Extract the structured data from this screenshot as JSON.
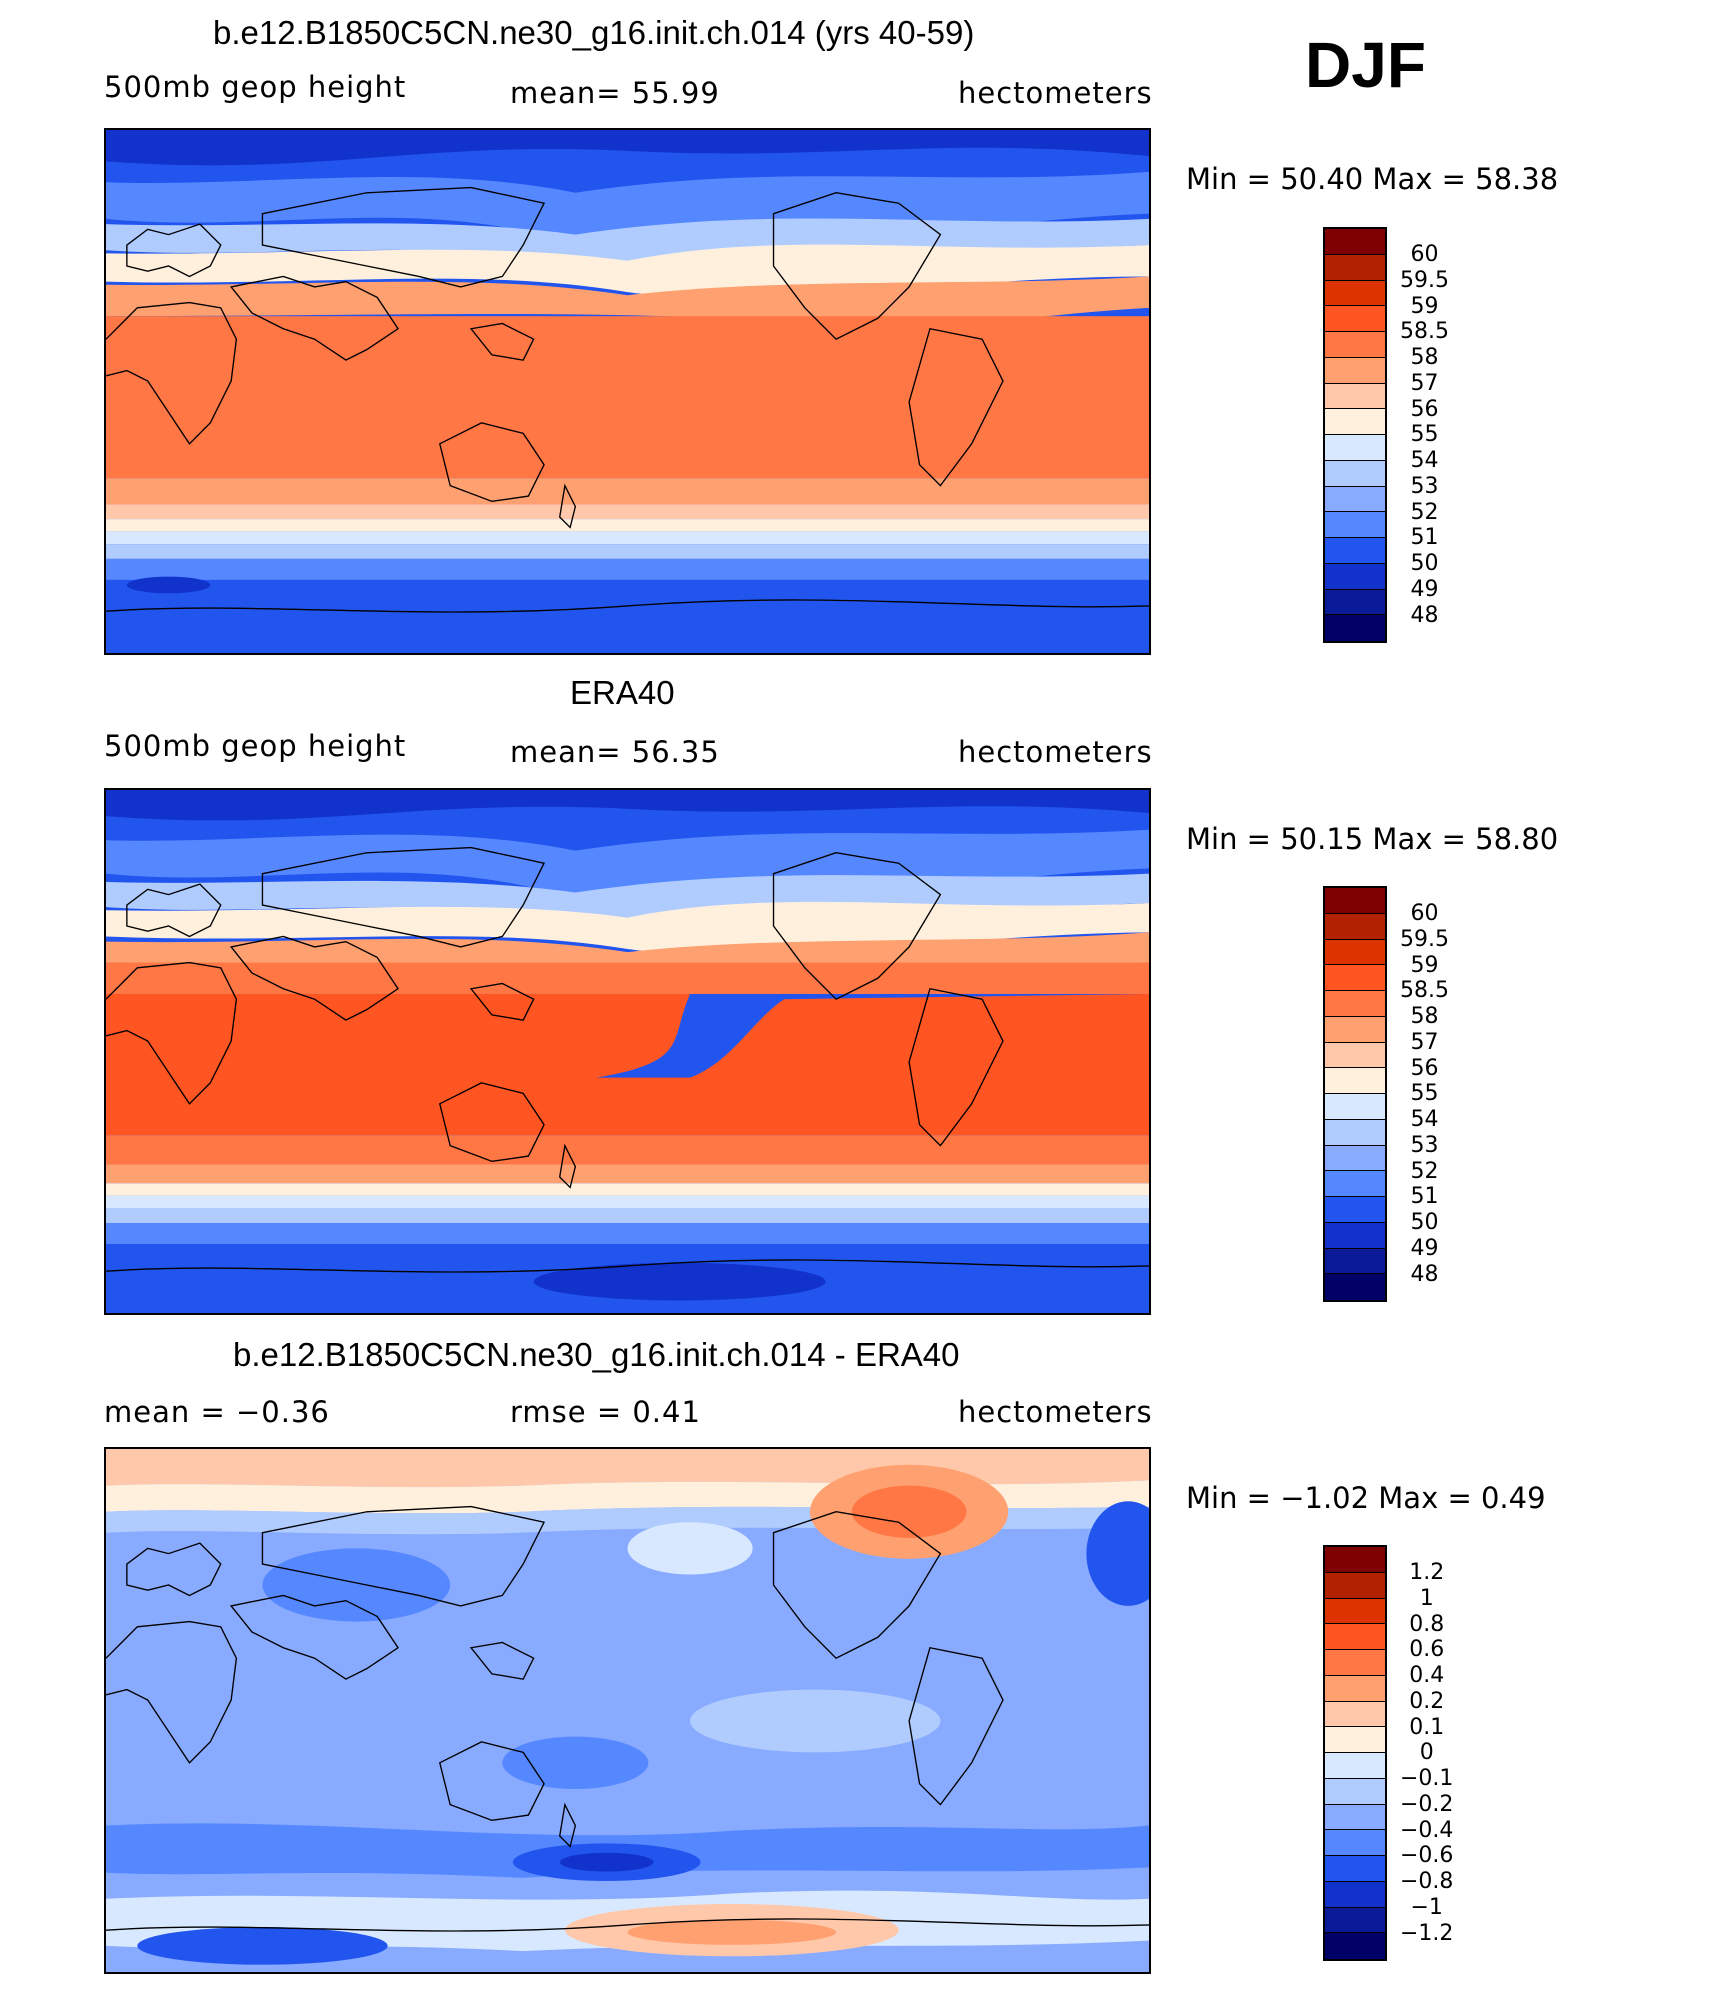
{
  "season": "DJF",
  "panels": [
    {
      "title": "b.e12.B1850C5CN.ne30_g16.init.ch.014 (yrs 40-59)",
      "left_label": "500mb  geop  height",
      "mid_label": "mean=   55.99",
      "units": "hectometers",
      "minmax": "Min  =    50.40  Max  =    58.38",
      "colorbar_labels": [
        "60",
        "59.5",
        "59",
        "58.5",
        "58",
        "57",
        "56",
        "55",
        "54",
        "53",
        "52",
        "51",
        "50",
        "49",
        "48"
      ]
    },
    {
      "title": "ERA40",
      "left_label": "500mb  geop  height",
      "mid_label": "mean=   56.35",
      "units": "hectometers",
      "minmax": "Min  =    50.15  Max  =    58.80",
      "colorbar_labels": [
        "60",
        "59.5",
        "59",
        "58.5",
        "58",
        "57",
        "56",
        "55",
        "54",
        "53",
        "52",
        "51",
        "50",
        "49",
        "48"
      ]
    },
    {
      "title": "b.e12.B1850C5CN.ne30_g16.init.ch.014 - ERA40",
      "left_label": "mean  =    −0.36",
      "mid_label": "rmse  =     0.41",
      "units": "hectometers",
      "minmax": "Min  =   −1.02  Max  =     0.49",
      "colorbar_labels": [
        "1.2",
        "1",
        "0.8",
        "0.6",
        "0.4",
        "0.2",
        "0.1",
        "0",
        "−0.1",
        "−0.2",
        "−0.4",
        "−0.6",
        "−0.8",
        "−1",
        "−1.2"
      ]
    }
  ],
  "colors": {
    "scale": [
      "#7f0000",
      "#b22200",
      "#dd3300",
      "#ff5522",
      "#ff7744",
      "#ffa070",
      "#ffc8aa",
      "#fff0dd",
      "#d8e8ff",
      "#b0ccff",
      "#88aaff",
      "#5588ff",
      "#2255ee",
      "#1133cc",
      "#0a1a99",
      "#000066"
    ]
  }
}
